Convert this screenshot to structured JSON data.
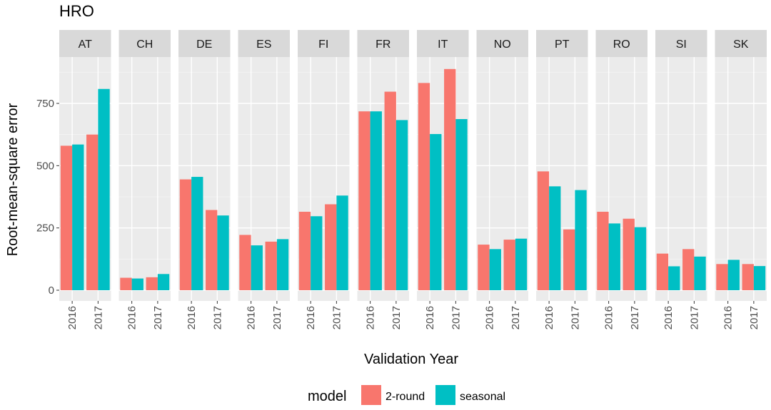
{
  "chart_data": {
    "type": "bar",
    "title": "HRO",
    "xlabel": "Validation Year",
    "ylabel": "Root-mean-square error",
    "ylim": [
      -50,
      930
    ],
    "yticks": [
      0,
      250,
      500,
      750
    ],
    "categories": [
      "2016",
      "2017"
    ],
    "facets": [
      "AT",
      "CH",
      "DE",
      "ES",
      "FI",
      "FR",
      "IT",
      "NO",
      "PT",
      "RO",
      "SI",
      "SK"
    ],
    "series": [
      {
        "name": "2-round",
        "color": "#F8766D",
        "values": {
          "AT": [
            580,
            625
          ],
          "CH": [
            50,
            52
          ],
          "DE": [
            445,
            322
          ],
          "ES": [
            222,
            195
          ],
          "FI": [
            315,
            345
          ],
          "FR": [
            718,
            797
          ],
          "IT": [
            832,
            888
          ],
          "NO": [
            183,
            203
          ],
          "PT": [
            477,
            244
          ],
          "RO": [
            315,
            287
          ],
          "SI": [
            147,
            165
          ],
          "SK": [
            105,
            105
          ]
        }
      },
      {
        "name": "seasonal",
        "color": "#00BFC4",
        "values": {
          "AT": [
            585,
            808
          ],
          "CH": [
            47,
            65
          ],
          "DE": [
            455,
            300
          ],
          "ES": [
            180,
            205
          ],
          "FI": [
            297,
            380
          ],
          "FR": [
            718,
            683
          ],
          "IT": [
            627,
            687
          ],
          "NO": [
            165,
            207
          ],
          "PT": [
            417,
            402
          ],
          "RO": [
            268,
            253
          ],
          "SI": [
            96,
            135
          ],
          "SK": [
            122,
            97
          ]
        }
      }
    ],
    "grid": true,
    "legend_position": "bottom",
    "legend_title": "model"
  }
}
